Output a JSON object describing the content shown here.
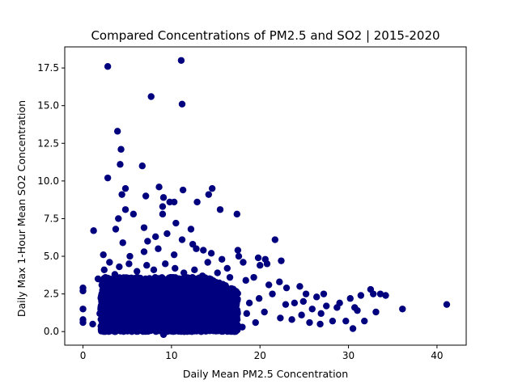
{
  "chart_data": {
    "type": "scatter",
    "title": "Compared Concentrations of PM2.5 and SO2 | 2015-2020",
    "xlabel": "Daily Mean PM2.5 Concentration",
    "ylabel": "Daily Max 1-Hour Mean SO2 Concentration",
    "xlim": [
      -2.06,
      43.3
    ],
    "ylim": [
      -0.9,
      18.9
    ],
    "xticks": [
      0,
      10,
      20,
      30,
      40
    ],
    "xtick_labels": [
      "0",
      "10",
      "20",
      "30",
      "40"
    ],
    "yticks": [
      0.0,
      2.5,
      5.0,
      7.5,
      10.0,
      12.5,
      15.0,
      17.5
    ],
    "ytick_labels": [
      "0.0",
      "2.5",
      "5.0",
      "7.5",
      "10.0",
      "12.5",
      "15.0",
      "17.5"
    ],
    "grid": false,
    "marker_color": "#00007f",
    "series": [
      {
        "points": [
          [
            2.8,
            17.6
          ],
          [
            11.1,
            18.0
          ],
          [
            7.7,
            15.6
          ],
          [
            11.2,
            15.1
          ],
          [
            3.9,
            13.3
          ],
          [
            4.3,
            12.1
          ],
          [
            4.2,
            11.1
          ],
          [
            6.7,
            11.0
          ],
          [
            2.8,
            10.2
          ],
          [
            8.6,
            9.6
          ],
          [
            14.6,
            9.5
          ],
          [
            4.8,
            9.5
          ],
          [
            11.3,
            9.4
          ],
          [
            4.4,
            9.1
          ],
          [
            7.1,
            9.0
          ],
          [
            9.1,
            8.9
          ],
          [
            14.2,
            9.1
          ],
          [
            9.8,
            8.6
          ],
          [
            12.9,
            8.6
          ],
          [
            10.3,
            8.6
          ],
          [
            4.8,
            8.1
          ],
          [
            15.5,
            8.1
          ],
          [
            9.0,
            8.3
          ],
          [
            5.7,
            7.8
          ],
          [
            4.0,
            7.5
          ],
          [
            9.0,
            7.8
          ],
          [
            10.5,
            7.2
          ],
          [
            17.4,
            7.8
          ],
          [
            12.2,
            6.8
          ],
          [
            1.2,
            6.7
          ],
          [
            3.7,
            6.8
          ],
          [
            6.9,
            6.9
          ],
          [
            21.7,
            6.1
          ],
          [
            4.5,
            5.9
          ],
          [
            7.3,
            6.0
          ],
          [
            8.2,
            6.3
          ],
          [
            9.5,
            6.5
          ],
          [
            11.2,
            6.1
          ],
          [
            12.4,
            5.8
          ],
          [
            13.6,
            5.4
          ],
          [
            17.5,
            5.4
          ],
          [
            2.3,
            5.1
          ],
          [
            5.3,
            5.0
          ],
          [
            6.9,
            5.3
          ],
          [
            8.5,
            5.5
          ],
          [
            10.3,
            5.1
          ],
          [
            12.8,
            5.5
          ],
          [
            14.5,
            5.2
          ],
          [
            15.7,
            4.8
          ],
          [
            17.6,
            5.0
          ],
          [
            19.8,
            4.9
          ],
          [
            20.6,
            4.8
          ],
          [
            22.4,
            4.7
          ],
          [
            20.0,
            4.4
          ],
          [
            20.8,
            4.5
          ],
          [
            18.1,
            4.6
          ],
          [
            16.3,
            4.2
          ],
          [
            14.1,
            4.6
          ],
          [
            0.0,
            2.9
          ],
          [
            0.0,
            2.7
          ],
          [
            0.0,
            1.5
          ],
          [
            0.0,
            0.8
          ],
          [
            0.0,
            0.6
          ],
          [
            1.1,
            0.5
          ],
          [
            1.7,
            3.5
          ],
          [
            2.4,
            4.1
          ],
          [
            3.0,
            4.6
          ],
          [
            3.6,
            3.8
          ],
          [
            4.1,
            4.3
          ],
          [
            5.2,
            4.5
          ],
          [
            6.1,
            4.0
          ],
          [
            7.2,
            4.4
          ],
          [
            8.0,
            4.1
          ],
          [
            9.3,
            4.5
          ],
          [
            10.4,
            4.2
          ],
          [
            11.4,
            3.9
          ],
          [
            12.6,
            4.1
          ],
          [
            13.5,
            3.7
          ],
          [
            15.2,
            3.9
          ],
          [
            16.6,
            3.6
          ],
          [
            18.4,
            3.4
          ],
          [
            19.3,
            3.6
          ],
          [
            21.0,
            3.1
          ],
          [
            22.2,
            3.3
          ],
          [
            23.0,
            2.9
          ],
          [
            24.5,
            3.0
          ],
          [
            25.2,
            2.5
          ],
          [
            26.4,
            2.3
          ],
          [
            27.2,
            2.5
          ],
          [
            29.0,
            1.9
          ],
          [
            30.2,
            2.2
          ],
          [
            31.4,
            2.4
          ],
          [
            32.5,
            2.8
          ],
          [
            32.8,
            2.5
          ],
          [
            33.6,
            2.5
          ],
          [
            34.2,
            2.4
          ],
          [
            29.7,
            0.7
          ],
          [
            30.5,
            0.2
          ],
          [
            31.0,
            1.4
          ],
          [
            31.8,
            0.7
          ],
          [
            33.1,
            1.3
          ],
          [
            36.1,
            1.5
          ],
          [
            41.1,
            1.8
          ],
          [
            28.2,
            0.7
          ],
          [
            27.5,
            1.7
          ],
          [
            26.8,
            0.5
          ],
          [
            25.6,
            0.6
          ],
          [
            24.7,
            1.1
          ],
          [
            23.6,
            0.8
          ],
          [
            22.9,
            1.8
          ],
          [
            22.3,
            0.9
          ],
          [
            21.4,
            2.5
          ],
          [
            20.5,
            1.3
          ],
          [
            19.5,
            0.6
          ],
          [
            18.8,
            1.9
          ],
          [
            18.0,
            0.3
          ],
          [
            17.2,
            2.7
          ],
          [
            16.4,
            0.9
          ],
          [
            15.7,
            1.4
          ],
          [
            14.8,
            0.2
          ],
          [
            13.9,
            2.9
          ],
          [
            13.1,
            0.3
          ],
          [
            12.3,
            3.2
          ],
          [
            11.6,
            0.1
          ],
          [
            10.8,
            2.4
          ],
          [
            9.9,
            3.6
          ],
          [
            9.1,
            -0.2
          ],
          [
            8.3,
            3.0
          ],
          [
            7.5,
            0.1
          ],
          [
            6.7,
            3.2
          ],
          [
            5.9,
            0.1
          ],
          [
            5.1,
            3.3
          ],
          [
            4.3,
            0.2
          ],
          [
            3.5,
            2.9
          ],
          [
            2.7,
            0.3
          ],
          [
            2.1,
            2.0
          ],
          [
            1.9,
            1.2
          ],
          [
            2.4,
            0.9
          ],
          [
            6.0,
            1.6
          ],
          [
            7.0,
            2.0
          ],
          [
            8.0,
            1.5
          ],
          [
            9.0,
            2.2
          ],
          [
            10.0,
            1.4
          ],
          [
            11.0,
            1.8
          ],
          [
            12.0,
            1.2
          ],
          [
            13.0,
            2.0
          ],
          [
            14.0,
            1.1
          ],
          [
            15.0,
            1.7
          ],
          [
            16.0,
            1.0
          ],
          [
            17.0,
            1.5
          ],
          [
            18.5,
            1.2
          ],
          [
            19.9,
            2.2
          ],
          [
            23.9,
            1.9
          ],
          [
            24.9,
            2.0
          ],
          [
            25.9,
            1.5
          ],
          [
            26.9,
            1.2
          ],
          [
            28.7,
            1.6
          ],
          [
            30.7,
            1.6
          ]
        ]
      }
    ],
    "dense_region": {
      "x_range": [
        2.0,
        17.5
      ],
      "y_range": [
        0.0,
        3.6
      ],
      "count": 2600
    }
  }
}
